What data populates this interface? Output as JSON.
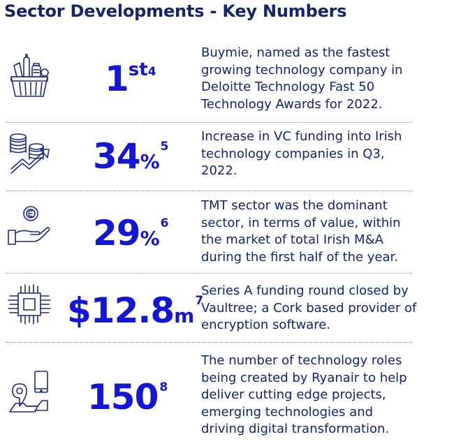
{
  "title": "Sector Developments - Key Numbers",
  "accent_color": "#1515d6",
  "text_color": "#142569",
  "stats": [
    {
      "icon": "grocery-basket-icon",
      "value": "1",
      "suffix": "st",
      "footnote": "4",
      "description": "Buymie, named as the fastest growing technology company in Deloitte Technology Fast 50 Technology Awards for 2022."
    },
    {
      "icon": "coins-growth-icon",
      "value": "34",
      "suffix": "%",
      "footnote": "5",
      "description": "Increase in VC funding into Irish technology companies in Q3, 2022."
    },
    {
      "icon": "hand-coin-icon",
      "value": "29",
      "suffix": "%",
      "footnote": "6",
      "description": "TMT sector was the dominant sector, in terms of value, within the market of total Irish M&A during the first half of the year."
    },
    {
      "icon": "microchip-icon",
      "value": "$12.8",
      "suffix": "m",
      "footnote": "7",
      "description": "Series A funding round closed by Vaultree; a Cork based provider of encryption software."
    },
    {
      "icon": "location-device-icon",
      "value": "150",
      "suffix": "",
      "footnote": "8",
      "description": "The number of technology roles being created by Ryanair to help deliver cutting edge projects, emerging technologies and driving digital transformation."
    }
  ]
}
